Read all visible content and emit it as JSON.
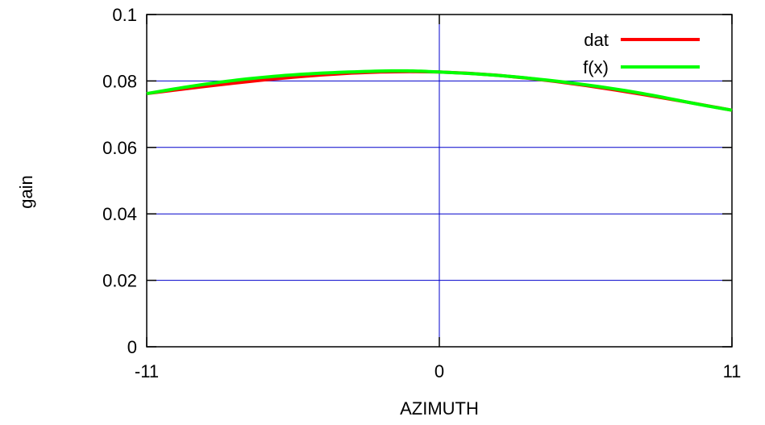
{
  "chart_data": {
    "type": "line",
    "xlabel": "AZIMUTH",
    "ylabel": "gain",
    "xlim": [
      -11,
      11
    ],
    "ylim": [
      0,
      0.1
    ],
    "xticks": [
      -11,
      0,
      11
    ],
    "xtick_labels": [
      "-11",
      "0",
      "11"
    ],
    "yticks": [
      0,
      0.02,
      0.04,
      0.06,
      0.08,
      0.1
    ],
    "ytick_labels": [
      "0",
      "0.02",
      "0.04",
      "0.06",
      "0.08",
      "0.1"
    ],
    "grid": true,
    "legend": "top-right",
    "series": [
      {
        "name": "dat",
        "color": "#ff0000",
        "x": [
          -11,
          0,
          11
        ],
        "y": [
          0.0762,
          0.0827,
          0.0712
        ]
      },
      {
        "name": "f(x)",
        "color": "#00ff00",
        "x": [
          -11,
          -9,
          -7,
          -5,
          -3,
          -1,
          0,
          2,
          4,
          6,
          8,
          10,
          11
        ],
        "y": [
          0.0762,
          0.0788,
          0.0808,
          0.0821,
          0.0828,
          0.083,
          0.0827,
          0.0818,
          0.0803,
          0.0783,
          0.0757,
          0.0726,
          0.0712
        ]
      }
    ]
  }
}
